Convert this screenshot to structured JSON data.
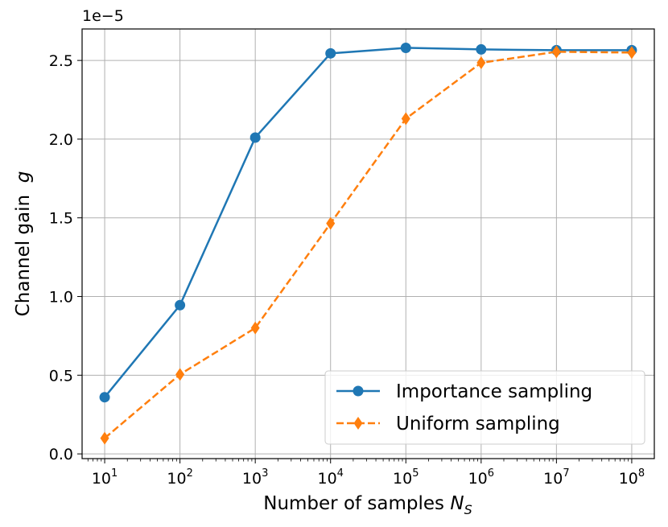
{
  "chart_data": {
    "type": "line",
    "x_scale": "log",
    "x": [
      10,
      100,
      1000,
      10000,
      100000,
      1000000,
      10000000,
      100000000
    ],
    "x_ticks": [
      {
        "base": "10",
        "exp": "1"
      },
      {
        "base": "10",
        "exp": "2"
      },
      {
        "base": "10",
        "exp": "3"
      },
      {
        "base": "10",
        "exp": "4"
      },
      {
        "base": "10",
        "exp": "5"
      },
      {
        "base": "10",
        "exp": "6"
      },
      {
        "base": "10",
        "exp": "7"
      },
      {
        "base": "10",
        "exp": "8"
      }
    ],
    "y_ticks": [
      "0.0",
      "0.5",
      "1.0",
      "1.5",
      "2.0",
      "2.5"
    ],
    "y_tick_values": [
      0,
      0.5,
      1.0,
      1.5,
      2.0,
      2.5
    ],
    "y_offset_label": "1e−5",
    "ylim": [
      -0.03,
      2.7
    ],
    "xlim_decades": [
      0.7,
      8.3
    ],
    "grid": true,
    "legend_position": "lower right",
    "xlabel": {
      "text": "Number of samples ",
      "var": "N",
      "sub": "S"
    },
    "ylabel": {
      "text": "Channel gain  ",
      "var": "g"
    },
    "series": [
      {
        "name": "Importance sampling",
        "color": "#1f77b4",
        "marker": "circle",
        "linestyle": "solid",
        "values": [
          0.36,
          0.945,
          2.01,
          2.545,
          2.58,
          2.57,
          2.565,
          2.565
        ]
      },
      {
        "name": "Uniform sampling",
        "color": "#ff7f0e",
        "marker": "diamond",
        "linestyle": "dashed",
        "values": [
          0.1,
          0.505,
          0.8,
          1.465,
          2.13,
          2.485,
          2.555,
          2.55
        ]
      }
    ]
  }
}
